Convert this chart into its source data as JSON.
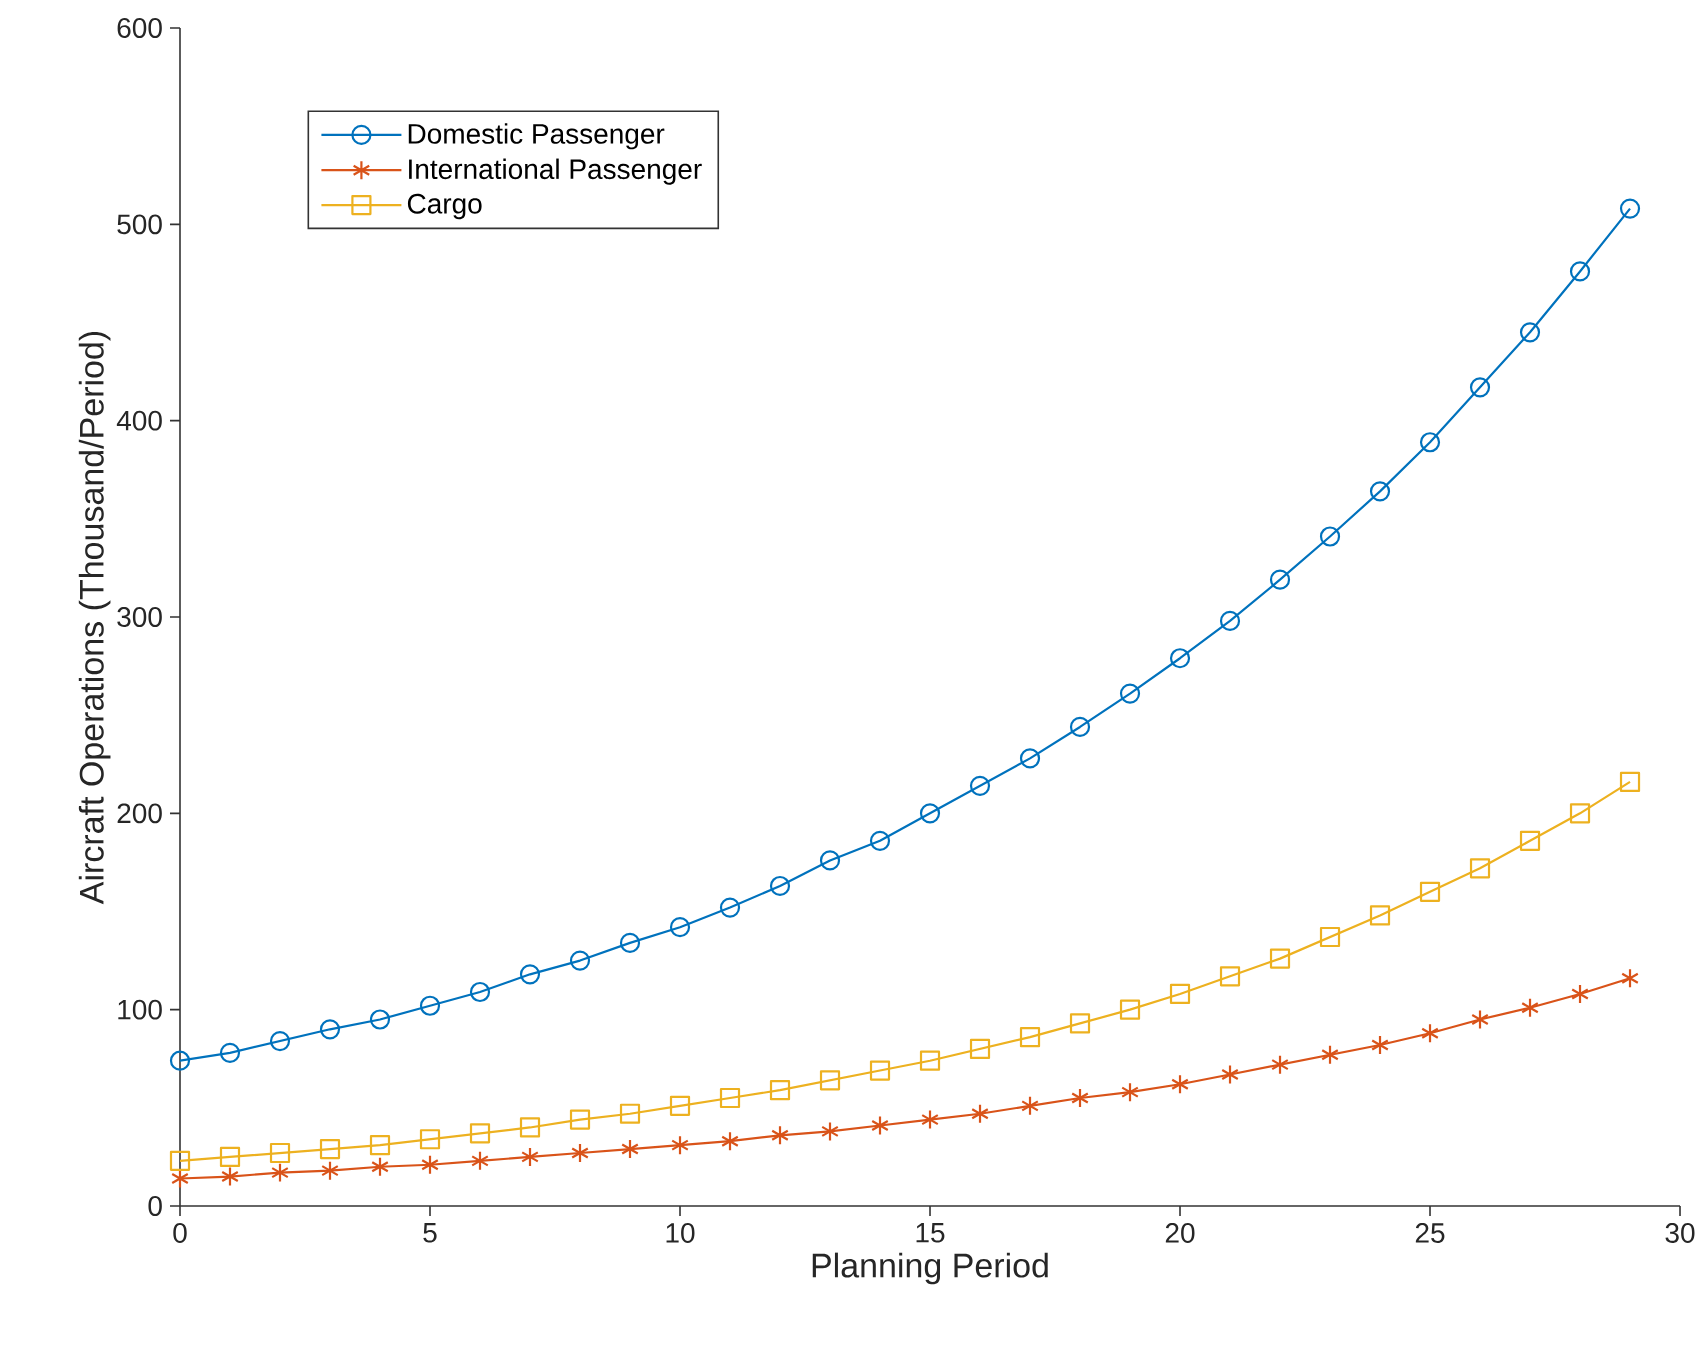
{
  "chart_data": {
    "type": "line",
    "xlabel": "Planning Period",
    "ylabel": "Aircraft Operations (Thousand/Period)",
    "x": [
      0,
      1,
      2,
      3,
      4,
      5,
      6,
      7,
      8,
      9,
      10,
      11,
      12,
      13,
      14,
      15,
      16,
      17,
      18,
      19,
      20,
      21,
      22,
      23,
      24,
      25,
      26,
      27,
      28,
      29
    ],
    "series": [
      {
        "name": "Domestic Passenger",
        "color": "#0072bd",
        "marker": "circle",
        "values": [
          74,
          78,
          84,
          90,
          95,
          102,
          109,
          118,
          125,
          134,
          142,
          152,
          163,
          176,
          186,
          200,
          214,
          228,
          244,
          261,
          279,
          298,
          319,
          341,
          364,
          389,
          417,
          445,
          476,
          508
        ]
      },
      {
        "name": "International Passenger",
        "color": "#d95319",
        "marker": "cross",
        "values": [
          14,
          15,
          17,
          18,
          20,
          21,
          23,
          25,
          27,
          29,
          31,
          33,
          36,
          38,
          41,
          44,
          47,
          51,
          55,
          58,
          62,
          67,
          72,
          77,
          82,
          88,
          95,
          101,
          108,
          116
        ]
      },
      {
        "name": "Cargo",
        "color": "#edb120",
        "marker": "square",
        "values": [
          23,
          25,
          27,
          29,
          31,
          34,
          37,
          40,
          44,
          47,
          51,
          55,
          59,
          64,
          69,
          74,
          80,
          86,
          93,
          100,
          108,
          117,
          126,
          137,
          148,
          160,
          172,
          186,
          200,
          216
        ]
      }
    ],
    "xlim": [
      0,
      30
    ],
    "xticks": [
      0,
      5,
      10,
      15,
      20,
      25,
      30
    ],
    "ylim": [
      0,
      600
    ],
    "yticks": [
      0,
      100,
      200,
      300,
      400,
      500,
      600
    ],
    "grid": false,
    "legend": "top left",
    "line_style": "solid"
  }
}
